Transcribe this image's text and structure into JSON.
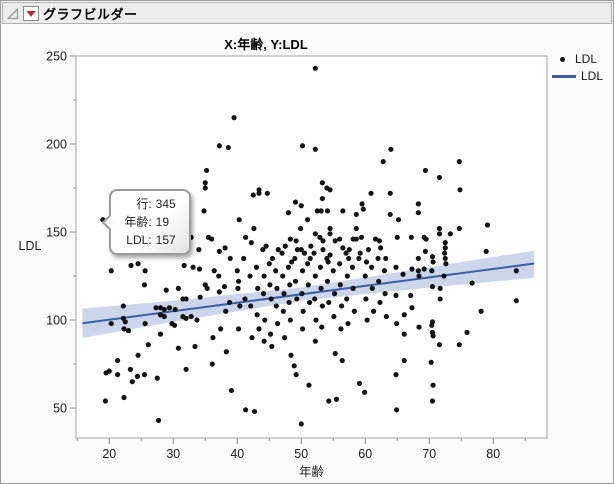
{
  "window": {
    "title": "グラフビルダー"
  },
  "colors": {
    "fit_line": "#3a5fa8",
    "confidence_band": "rgba(122,148,200,0.38)",
    "point": "#141414",
    "frame": "#a3a3a3",
    "tick": "#8f8f8f",
    "header_bg": "#ececec",
    "red_triangle": "#cf2121"
  },
  "tooltip": {
    "rows": [
      {
        "label": "行:",
        "value": "345"
      },
      {
        "label": "年齢:",
        "value": "19"
      },
      {
        "label": "LDL:",
        "value": "157"
      }
    ],
    "anchor_point": [
      19,
      157
    ]
  },
  "chart_data": {
    "type": "scatter",
    "title": "X:年齢, Y:LDL",
    "xlabel": "年齢",
    "ylabel": "LDL",
    "xlim": [
      14.8,
      88.4
    ],
    "ylim": [
      33,
      250
    ],
    "x_major_ticks": [
      20,
      30,
      40,
      50,
      60,
      70,
      80
    ],
    "x_minor_ticks": [
      15,
      25,
      35,
      45,
      55,
      65,
      75,
      85
    ],
    "y_major_ticks": [
      50,
      100,
      150,
      200,
      250
    ],
    "y_minor_ticks": [
      75,
      125,
      175,
      225
    ],
    "grid": false,
    "legend_position": "top-right",
    "legend": [
      {
        "label": "LDL",
        "glyph": "point"
      },
      {
        "label": "LDL",
        "glyph": "line"
      }
    ],
    "fit_line": {
      "x": [
        15.8,
        86.4
      ],
      "y": [
        98.2,
        132.1
      ]
    },
    "confidence_band": {
      "x": [
        15.8,
        30,
        50,
        70,
        86.4
      ],
      "upper": [
        106.5,
        111,
        118.5,
        130,
        139.5
      ],
      "lower": [
        89.8,
        99,
        111,
        118.5,
        124
      ]
    },
    "points": [
      [
        39.5,
        215
      ],
      [
        37.2,
        199
      ],
      [
        38.6,
        198
      ],
      [
        35.2,
        185
      ],
      [
        35,
        178
      ],
      [
        35,
        175
      ],
      [
        34.8,
        162
      ],
      [
        32.8,
        147
      ],
      [
        35.5,
        147
      ],
      [
        36,
        146
      ],
      [
        19,
        157
      ],
      [
        52.2,
        243
      ],
      [
        50.2,
        199
      ],
      [
        52.2,
        197
      ],
      [
        64,
        197
      ],
      [
        62.8,
        190
      ],
      [
        63.9,
        172
      ],
      [
        53.3,
        178
      ],
      [
        54,
        175
      ],
      [
        54.5,
        174
      ],
      [
        42.5,
        171
      ],
      [
        43.4,
        174
      ],
      [
        43.4,
        172
      ],
      [
        44.7,
        172
      ],
      [
        49.1,
        167
      ],
      [
        50,
        165
      ],
      [
        53.3,
        169
      ],
      [
        48,
        161
      ],
      [
        52.5,
        162
      ],
      [
        53.1,
        162
      ],
      [
        54.1,
        162
      ],
      [
        56.5,
        162
      ],
      [
        58.6,
        160
      ],
      [
        59.5,
        166
      ],
      [
        59.7,
        163
      ],
      [
        60.9,
        172
      ],
      [
        40.3,
        157
      ],
      [
        51,
        157
      ],
      [
        42.6,
        152
      ],
      [
        49.9,
        152
      ],
      [
        52.2,
        149
      ],
      [
        54.5,
        152
      ],
      [
        54.5,
        149
      ],
      [
        58.6,
        152
      ],
      [
        59.4,
        147
      ],
      [
        41.3,
        147
      ],
      [
        42.2,
        144
      ],
      [
        48.3,
        146
      ],
      [
        49.2,
        145
      ],
      [
        52.9,
        147
      ],
      [
        53.4,
        145
      ],
      [
        55.3,
        145
      ],
      [
        56,
        146
      ],
      [
        58.1,
        146
      ],
      [
        58.6,
        146
      ],
      [
        61.6,
        146
      ],
      [
        62.2,
        145
      ],
      [
        63.9,
        160
      ],
      [
        74.7,
        190
      ],
      [
        69.4,
        185
      ],
      [
        71.6,
        181
      ],
      [
        74.8,
        174
      ],
      [
        68.3,
        166
      ],
      [
        68.3,
        161
      ],
      [
        65.2,
        157
      ],
      [
        79.1,
        154
      ],
      [
        74.7,
        152
      ],
      [
        71.6,
        152
      ],
      [
        71.6,
        149
      ],
      [
        73.3,
        149
      ],
      [
        65,
        147
      ],
      [
        67.2,
        147
      ],
      [
        69.2,
        147
      ],
      [
        69.5,
        146
      ],
      [
        72.5,
        144
      ],
      [
        34,
        140
      ],
      [
        37.2,
        139
      ],
      [
        38.1,
        141
      ],
      [
        23.4,
        131
      ],
      [
        24.5,
        132
      ],
      [
        25.6,
        128
      ],
      [
        20.3,
        128
      ],
      [
        31.7,
        131
      ],
      [
        33.1,
        130
      ],
      [
        34.1,
        129
      ],
      [
        36.4,
        128
      ],
      [
        25.5,
        120
      ],
      [
        28.9,
        117
      ],
      [
        30.8,
        118
      ],
      [
        35,
        120
      ],
      [
        35.3,
        118
      ],
      [
        37.2,
        116
      ],
      [
        38,
        119
      ],
      [
        22.2,
        108
      ],
      [
        27.3,
        107
      ],
      [
        28,
        107
      ],
      [
        28.6,
        106
      ],
      [
        29.4,
        107
      ],
      [
        30.3,
        106
      ],
      [
        31.5,
        112
      ],
      [
        32,
        112
      ],
      [
        28,
        103
      ],
      [
        28.6,
        102
      ],
      [
        20.3,
        98
      ],
      [
        22.2,
        101
      ],
      [
        22.5,
        99
      ],
      [
        22.3,
        95
      ],
      [
        23,
        94
      ],
      [
        25.6,
        98
      ],
      [
        29.8,
        98
      ],
      [
        30.2,
        97
      ],
      [
        31.5,
        102
      ],
      [
        32,
        101
      ],
      [
        32.8,
        102
      ],
      [
        33.7,
        100
      ],
      [
        28,
        92
      ],
      [
        24.5,
        80
      ],
      [
        21.3,
        77
      ],
      [
        20,
        71
      ],
      [
        21.3,
        69
      ],
      [
        19.5,
        70
      ],
      [
        23.3,
        72
      ],
      [
        23.6,
        65
      ],
      [
        24.4,
        68
      ],
      [
        25.5,
        69
      ],
      [
        27.5,
        67
      ],
      [
        30.8,
        84
      ],
      [
        32,
        72
      ],
      [
        19.4,
        54
      ],
      [
        27.7,
        43
      ],
      [
        22.3,
        56
      ],
      [
        26.1,
        86
      ],
      [
        33.4,
        85
      ],
      [
        36.2,
        90
      ],
      [
        37.4,
        95
      ],
      [
        38.2,
        105
      ],
      [
        38.8,
        110
      ],
      [
        36.1,
        75
      ],
      [
        38.3,
        82
      ],
      [
        39.1,
        60
      ],
      [
        34.2,
        113
      ],
      [
        37.1,
        125
      ],
      [
        38.9,
        135
      ],
      [
        40,
        128
      ],
      [
        40.2,
        122
      ],
      [
        40.1,
        118
      ],
      [
        40.4,
        108
      ],
      [
        40.2,
        95
      ],
      [
        41,
        135
      ],
      [
        41.2,
        112
      ],
      [
        41.3,
        49
      ],
      [
        42,
        125
      ],
      [
        42.1,
        108
      ],
      [
        42.3,
        90
      ],
      [
        42.7,
        48
      ],
      [
        43,
        130
      ],
      [
        43.2,
        118
      ],
      [
        43.1,
        103
      ],
      [
        43.4,
        95
      ],
      [
        44,
        140
      ],
      [
        44.2,
        125
      ],
      [
        44.1,
        115
      ],
      [
        44.3,
        100
      ],
      [
        44.2,
        88
      ],
      [
        45,
        132
      ],
      [
        45.1,
        120
      ],
      [
        45.3,
        112
      ],
      [
        45.2,
        92
      ],
      [
        45.4,
        85
      ],
      [
        46,
        128
      ],
      [
        46.2,
        118
      ],
      [
        46.1,
        108
      ],
      [
        46.3,
        98
      ],
      [
        47,
        138
      ],
      [
        47.1,
        125
      ],
      [
        47.3,
        115
      ],
      [
        47.2,
        105
      ],
      [
        47.4,
        90
      ],
      [
        48,
        130
      ],
      [
        48.2,
        120
      ],
      [
        48.1,
        110
      ],
      [
        48.3,
        100
      ],
      [
        48.9,
        74
      ],
      [
        49,
        135
      ],
      [
        49.1,
        122
      ],
      [
        49.3,
        112
      ],
      [
        49.2,
        69
      ],
      [
        50,
        140
      ],
      [
        50.2,
        128
      ],
      [
        50.1,
        115
      ],
      [
        50.3,
        105
      ],
      [
        50.2,
        95
      ],
      [
        50,
        41
      ],
      [
        51,
        132
      ],
      [
        51.1,
        120
      ],
      [
        51.3,
        110
      ],
      [
        51.2,
        63
      ],
      [
        52,
        138
      ],
      [
        52.2,
        125
      ],
      [
        52.1,
        112
      ],
      [
        52.3,
        100
      ],
      [
        52.2,
        88
      ],
      [
        53,
        130
      ],
      [
        53.1,
        118
      ],
      [
        53.3,
        108
      ],
      [
        53.2,
        96
      ],
      [
        54,
        135
      ],
      [
        54.1,
        122
      ],
      [
        54.3,
        110
      ],
      [
        54.3,
        54
      ],
      [
        55,
        128
      ],
      [
        55.2,
        115
      ],
      [
        55.1,
        102
      ],
      [
        55.5,
        55
      ],
      [
        56,
        132
      ],
      [
        56.1,
        120
      ],
      [
        56.3,
        108
      ],
      [
        56.2,
        95
      ],
      [
        57,
        138
      ],
      [
        57.2,
        125
      ],
      [
        57.1,
        112
      ],
      [
        57.3,
        98
      ],
      [
        58,
        130
      ],
      [
        58.1,
        118
      ],
      [
        58.3,
        105
      ],
      [
        59,
        135
      ],
      [
        59.1,
        64
      ],
      [
        59.9,
        59
      ],
      [
        60,
        125
      ],
      [
        60.1,
        112
      ],
      [
        60.3,
        100
      ],
      [
        61,
        130
      ],
      [
        61.1,
        118
      ],
      [
        61.3,
        105
      ],
      [
        62,
        135
      ],
      [
        62.1,
        122
      ],
      [
        62.3,
        110
      ],
      [
        63,
        128
      ],
      [
        63.1,
        115
      ],
      [
        63.3,
        102
      ],
      [
        48.4,
        80
      ],
      [
        55.3,
        81
      ],
      [
        56.4,
        77
      ],
      [
        44.5,
        142
      ],
      [
        46.4,
        140
      ],
      [
        47.5,
        142
      ],
      [
        49.4,
        140
      ],
      [
        50.5,
        138
      ],
      [
        51.5,
        142
      ],
      [
        53.4,
        140
      ],
      [
        54.5,
        137
      ],
      [
        56.5,
        141
      ],
      [
        57.5,
        140
      ],
      [
        59.2,
        138
      ],
      [
        60.5,
        140
      ],
      [
        62.4,
        141
      ],
      [
        45.5,
        135
      ],
      [
        48.5,
        133
      ],
      [
        51.4,
        135
      ],
      [
        54.2,
        133
      ],
      [
        57.4,
        135
      ],
      [
        60.2,
        133
      ],
      [
        63.2,
        135
      ],
      [
        69.4,
        139
      ],
      [
        72.5,
        141
      ],
      [
        72.4,
        138
      ],
      [
        78.9,
        139
      ],
      [
        68.3,
        135
      ],
      [
        70.5,
        136
      ],
      [
        72.5,
        135
      ],
      [
        70.6,
        133
      ],
      [
        72.6,
        132
      ],
      [
        64.8,
        130
      ],
      [
        67.3,
        129
      ],
      [
        68.3,
        128
      ],
      [
        69.2,
        129
      ],
      [
        70.4,
        128
      ],
      [
        83.6,
        128
      ],
      [
        65.9,
        126
      ],
      [
        68.4,
        125
      ],
      [
        72.3,
        125
      ],
      [
        76.7,
        121
      ],
      [
        70.5,
        119
      ],
      [
        71.7,
        118
      ],
      [
        64.8,
        114
      ],
      [
        67.1,
        114
      ],
      [
        83.6,
        111
      ],
      [
        71.7,
        112
      ],
      [
        67.3,
        107
      ],
      [
        78.1,
        105
      ],
      [
        66.1,
        103
      ],
      [
        64.9,
        98
      ],
      [
        70.5,
        99
      ],
      [
        70.4,
        97
      ],
      [
        68.4,
        96
      ],
      [
        70.5,
        93
      ],
      [
        70.6,
        91
      ],
      [
        75.9,
        93
      ],
      [
        66.1,
        92
      ],
      [
        71.6,
        86
      ],
      [
        74.7,
        86
      ],
      [
        66.1,
        77
      ],
      [
        70.3,
        76
      ],
      [
        64.8,
        69
      ],
      [
        70.6,
        63
      ],
      [
        64.9,
        49
      ],
      [
        70.5,
        54
      ]
    ]
  }
}
